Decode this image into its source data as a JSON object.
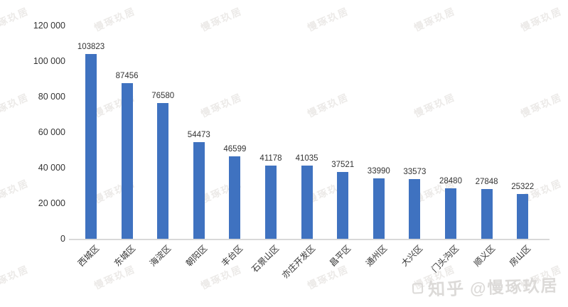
{
  "chart_data": {
    "type": "bar",
    "title": "",
    "xlabel": "",
    "ylabel": "",
    "categories": [
      "西城区",
      "东城区",
      "海淀区",
      "朝阳区",
      "丰台区",
      "石景山区",
      "亦庄开发区",
      "昌平区",
      "通州区",
      "大兴区",
      "门头沟区",
      "顺义区",
      "房山区"
    ],
    "values": [
      103823,
      87456,
      76580,
      54473,
      46599,
      41178,
      41035,
      37521,
      33990,
      33573,
      28480,
      27848,
      25322
    ],
    "data_labels": [
      "103823",
      "87456",
      "76580",
      "54473",
      "46599",
      "41178",
      "41035",
      "37521",
      "33990",
      "33573",
      "28480",
      "27848",
      "25322"
    ],
    "ylim": [
      0,
      120000
    ],
    "ytick_interval": 20000,
    "y_tick_labels": [
      "0",
      "20 000",
      "40 000",
      "60 000",
      "80 000",
      "100 000",
      "120 000"
    ],
    "grid": false,
    "legend": null,
    "bar_color": "#3f72c0",
    "text_color": "#333333",
    "axis_line_color": "#d9d9d9"
  },
  "watermark": {
    "text": "慢琢玖居",
    "color": "#eceae8"
  },
  "brand": {
    "platform": "知乎",
    "handle": "@慢琢玖居",
    "color": "#dcdad8"
  }
}
